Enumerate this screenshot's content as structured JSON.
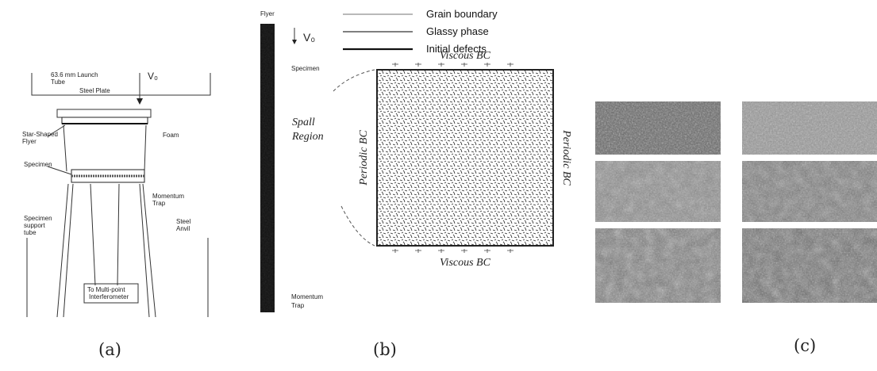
{
  "panel_a": {
    "caption": "(a)",
    "launch_tube": [
      "63.6 mm Launch",
      "Tube"
    ],
    "steel_plate": "Steel Plate",
    "velocity": "V₀",
    "flyer": [
      "Star-Shaped",
      "Flyer"
    ],
    "foam": "Foam",
    "specimen": "Specimen",
    "momentum_trap": [
      "Momentum",
      "Trap"
    ],
    "support_tube": [
      "Specimen",
      "support",
      "tube"
    ],
    "anvil": [
      "Steel",
      "Anvil"
    ],
    "interferometer": [
      "To Multi-point",
      "Interferometer"
    ]
  },
  "panel_b": {
    "caption": "(b)",
    "flyer": "Flyer",
    "velocity": "V₀",
    "specimen": "Specimen",
    "spall_region": [
      "Spall",
      "Region"
    ],
    "momentum_trap": [
      "Momentum",
      "Trap"
    ],
    "legend": [
      "Grain boundary",
      "Glassy phase",
      "Initial defects"
    ],
    "top_bc": "Viscous BC",
    "bottom_bc": "Viscous BC",
    "left_bc": "Periodic BC",
    "right_bc": "Periodic BC"
  },
  "panel_c": {
    "caption": "(c)"
  }
}
